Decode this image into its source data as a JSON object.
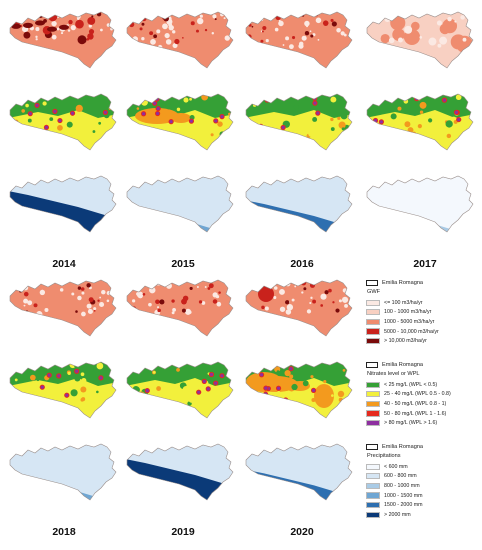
{
  "years_top": [
    "2014",
    "2015",
    "2016",
    "2017"
  ],
  "years_bottom": [
    "2018",
    "2019",
    "2020"
  ],
  "maps": [
    {
      "panel": "2014 GWF",
      "layer": "gwf",
      "level": 0.85
    },
    {
      "panel": "2015 GWF",
      "layer": "gwf",
      "level": 0.5
    },
    {
      "panel": "2016 GWF",
      "layer": "gwf",
      "level": 0.55
    },
    {
      "panel": "2017 GWF",
      "layer": "gwf",
      "level": 0.15
    },
    {
      "panel": "2014 Nitrates",
      "layer": "nitrates",
      "level": 0.55
    },
    {
      "panel": "2015 Nitrates",
      "layer": "nitrates",
      "level": 0.75
    },
    {
      "panel": "2016 Nitrates",
      "layer": "nitrates",
      "level": 0.6
    },
    {
      "panel": "2017 Nitrates",
      "layer": "nitrates",
      "level": 0.45
    },
    {
      "panel": "2014 Precipitation",
      "layer": "precip",
      "level": 0.85
    },
    {
      "panel": "2015 Precipitation",
      "layer": "precip",
      "level": 0.35
    },
    {
      "panel": "2016 Precipitation",
      "layer": "precip",
      "level": 0.6
    },
    {
      "panel": "2017 Precipitation",
      "layer": "precip",
      "level": 0.2
    },
    {
      "panel": "2018 GWF",
      "layer": "gwf",
      "level": 0.45
    },
    {
      "panel": "2019 GWF",
      "layer": "gwf",
      "level": 0.5
    },
    {
      "panel": "2020 GWF",
      "layer": "gwf",
      "level": 0.35
    },
    {
      "panel": "2018 Nitrates",
      "layer": "nitrates",
      "level": 0.4
    },
    {
      "panel": "2019 Nitrates",
      "layer": "nitrates",
      "level": 0.5
    },
    {
      "panel": "2020 Nitrates",
      "layer": "nitrates",
      "level": 0.9
    },
    {
      "panel": "2018 Precipitation",
      "layer": "precip",
      "level": 0.35
    },
    {
      "panel": "2019 Precipitation",
      "layer": "precip",
      "level": 0.85
    },
    {
      "panel": "2020 Precipitation",
      "layer": "precip",
      "level": 0.45
    }
  ],
  "legend": {
    "region_label": "Emilia Romagna",
    "gwf": {
      "title": "GWF",
      "items": [
        {
          "label": "<= 100 m3/ha/yr",
          "color": "#fbe9e3"
        },
        {
          "label": "100 - 1000 m3/ha/yr",
          "color": "#f8d0c2"
        },
        {
          "label": "1000 - 5000 m3/ha/yr",
          "color": "#ef8c6f"
        },
        {
          "label": "5000 - 10,000 m3/ha/yr",
          "color": "#c9221c"
        },
        {
          "label": "> 10,000 m3/ha/yr",
          "color": "#7a0a0a"
        }
      ]
    },
    "nitrates": {
      "title": "Nitrates level or WPL",
      "items": [
        {
          "label": "< 25 mg/L (WPL < 0.5)",
          "color": "#35a036"
        },
        {
          "label": "25 - 40 mg/L (WPL 0.5 - 0.8)",
          "color": "#f2f03c"
        },
        {
          "label": "40 - 50 mg/L (WPL 0.8 - 1)",
          "color": "#f39a1e"
        },
        {
          "label": "50 - 80 mg/L (WPL 1 - 1.6)",
          "color": "#e52a1e"
        },
        {
          "label": "> 80 mg/L (WPL > 1.6)",
          "color": "#8e2fa0"
        }
      ]
    },
    "precip": {
      "title": "Precipitations",
      "items": [
        {
          "label": "< 600 mm",
          "color": "#f4f8fd"
        },
        {
          "label": "600 - 800 mm",
          "color": "#d6e6f4"
        },
        {
          "label": "800 - 1000 mm",
          "color": "#a9cbe6"
        },
        {
          "label": "1000 - 1500 mm",
          "color": "#6fa6d3"
        },
        {
          "label": "1500 - 2000 mm",
          "color": "#2e6fb0"
        },
        {
          "label": "> 2000 mm",
          "color": "#0b3a78"
        }
      ]
    }
  }
}
